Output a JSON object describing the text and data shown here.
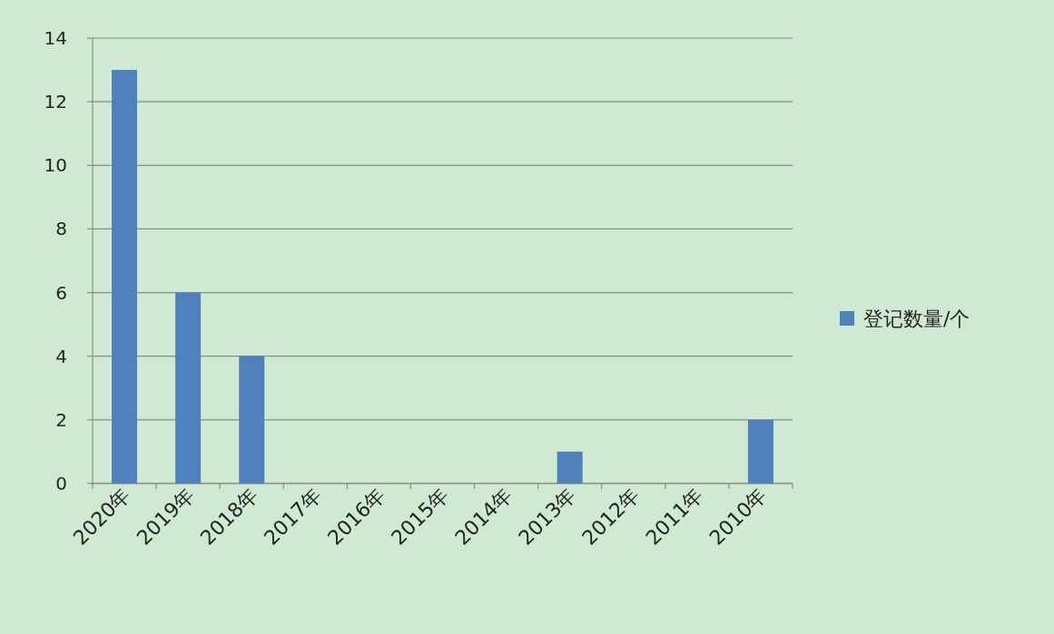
{
  "chart_data": {
    "type": "bar",
    "categories": [
      "2020年",
      "2019年",
      "2018年",
      "2017年",
      "2016年",
      "2015年",
      "2014年",
      "2013年",
      "2012年",
      "2011年",
      "2010年"
    ],
    "series": [
      {
        "name": "登记数量/个",
        "color": "#4f81bd",
        "values": [
          13,
          6,
          4,
          0,
          0,
          0,
          0,
          1,
          0,
          0,
          2
        ]
      }
    ],
    "ylim": [
      0,
      14
    ],
    "yticks": [
      0,
      2,
      4,
      6,
      8,
      10,
      12,
      14
    ],
    "grid": "y",
    "legend": "right"
  }
}
